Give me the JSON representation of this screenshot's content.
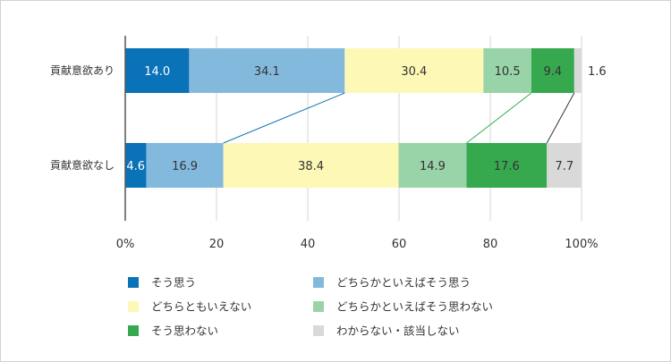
{
  "chart_data": {
    "type": "bar",
    "orientation": "horizontal",
    "stacked": true,
    "categories": [
      "貢献意欲あり",
      "貢献意欲なし"
    ],
    "series": [
      {
        "name": "そう思う",
        "values": [
          14.0,
          4.6
        ],
        "color": "#0a72b7",
        "label_color": "#ffffff"
      },
      {
        "name": "どちらかといえばそう思う",
        "values": [
          34.1,
          16.9
        ],
        "color": "#84b9de",
        "label_color": "#333333"
      },
      {
        "name": "どちらともいえない",
        "values": [
          30.4,
          38.4
        ],
        "color": "#fdf8b6",
        "label_color": "#333333"
      },
      {
        "name": "どちらかといえばそう思わない",
        "values": [
          10.5,
          14.9
        ],
        "color": "#99d3a8",
        "label_color": "#333333"
      },
      {
        "name": "そう思わない",
        "values": [
          9.4,
          17.6
        ],
        "color": "#36a94f",
        "label_color": "#333333"
      },
      {
        "name": "わからない・該当しない",
        "values": [
          1.6,
          7.7
        ],
        "color": "#d9d9d9",
        "label_color": "#333333"
      }
    ],
    "value_labels": [
      [
        "14.0",
        "34.1",
        "30.4",
        "10.5",
        "9.4",
        "1.6"
      ],
      [
        "4.6",
        "16.9",
        "38.4",
        "14.9",
        "17.6",
        "7.7"
      ]
    ],
    "xlim": [
      0,
      100
    ],
    "xticks": [
      0,
      20,
      40,
      60,
      80,
      100
    ],
    "xtick_labels": [
      "0%",
      "20",
      "40",
      "60",
      "80",
      "100%"
    ],
    "grid": true,
    "legend_position": "bottom",
    "connector_lines": [
      {
        "after_series": 1,
        "color": "#0a72b7"
      },
      {
        "after_series": 3,
        "color": "#36a94f"
      },
      {
        "after_series": 4,
        "color": "#333333"
      }
    ]
  }
}
